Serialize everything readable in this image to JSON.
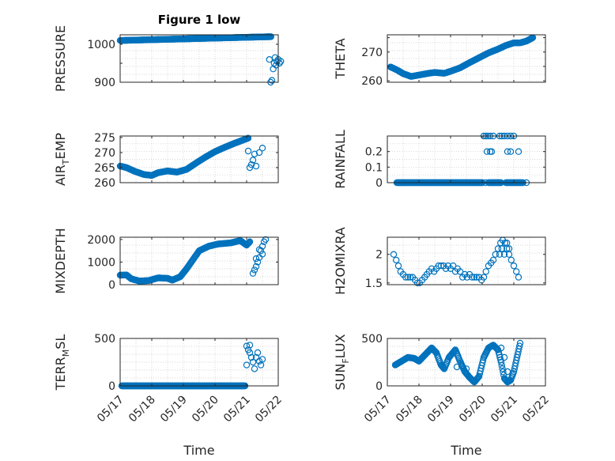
{
  "figure": {
    "title": "Figure 1 low"
  },
  "chart_data": [
    {
      "id": "pressure",
      "type": "scatter",
      "title": "Figure 1 low",
      "ylabel": "PRESSURE",
      "ylabel_sub": "",
      "xlabel": "",
      "show_xticklabels": false,
      "xlim": [
        0,
        5
      ],
      "ylim": [
        900,
        1025
      ],
      "yticks": [
        900,
        950,
        1000
      ],
      "yticklabels": [
        "900",
        "",
        "1000"
      ],
      "dense": [
        {
          "x0": 0.0,
          "x1": 4.78,
          "y0": 1010,
          "y1": 1020,
          "step": 0.015
        }
      ],
      "points": [
        [
          4.72,
          960
        ],
        [
          4.76,
          900
        ],
        [
          4.8,
          905
        ],
        [
          4.84,
          935
        ],
        [
          4.87,
          950
        ],
        [
          4.9,
          965
        ],
        [
          4.93,
          945
        ],
        [
          4.96,
          955
        ],
        [
          5.0,
          960
        ],
        [
          5.04,
          950
        ],
        [
          5.08,
          955
        ]
      ]
    },
    {
      "id": "theta",
      "type": "scatter",
      "ylabel": "THETA",
      "ylabel_sub": "",
      "xlabel": "",
      "show_xticklabels": false,
      "xlim": [
        0,
        5
      ],
      "ylim": [
        259.5,
        276
      ],
      "yticks": [
        260,
        265,
        270,
        275
      ],
      "yticklabels": [
        "260",
        "",
        "270",
        ""
      ],
      "curve": [
        [
          0.1,
          264.8
        ],
        [
          0.3,
          263.8
        ],
        [
          0.5,
          262.5
        ],
        [
          0.75,
          261.5
        ],
        [
          1.0,
          262.0
        ],
        [
          1.3,
          262.6
        ],
        [
          1.5,
          262.9
        ],
        [
          1.8,
          262.6
        ],
        [
          2.0,
          263.3
        ],
        [
          2.3,
          264.5
        ],
        [
          2.6,
          266.3
        ],
        [
          2.9,
          268.0
        ],
        [
          3.2,
          269.7
        ],
        [
          3.5,
          271.0
        ],
        [
          3.75,
          272.3
        ],
        [
          4.0,
          273.2
        ],
        [
          4.2,
          273.2
        ],
        [
          4.4,
          273.8
        ],
        [
          4.6,
          275.0
        ]
      ],
      "step": 0.022,
      "points": []
    },
    {
      "id": "air-temp",
      "type": "scatter",
      "ylabel": "AIR",
      "ylabel_sub": "T",
      "ylabel_after": "EMP",
      "xlabel": "",
      "show_xticklabels": false,
      "xlim": [
        0,
        5
      ],
      "ylim": [
        260,
        275.5
      ],
      "yticks": [
        260,
        265,
        270,
        275
      ],
      "yticklabels": [
        "260",
        "265",
        "270",
        "275"
      ],
      "curve": [
        [
          0.0,
          265.5
        ],
        [
          0.2,
          265.0
        ],
        [
          0.45,
          263.8
        ],
        [
          0.75,
          262.7
        ],
        [
          1.0,
          262.4
        ],
        [
          1.2,
          263.3
        ],
        [
          1.5,
          263.9
        ],
        [
          1.8,
          263.5
        ],
        [
          2.1,
          264.4
        ],
        [
          2.4,
          266.5
        ],
        [
          2.7,
          268.5
        ],
        [
          3.0,
          270.3
        ],
        [
          3.3,
          271.7
        ],
        [
          3.6,
          273.0
        ],
        [
          3.85,
          274.0
        ],
        [
          4.05,
          274.8
        ]
      ],
      "step": 0.02,
      "points": [
        [
          4.05,
          270.5
        ],
        [
          4.1,
          265.0
        ],
        [
          4.15,
          266.0
        ],
        [
          4.2,
          267.5
        ],
        [
          4.25,
          269.5
        ],
        [
          4.3,
          265.5
        ],
        [
          4.4,
          270.0
        ],
        [
          4.5,
          271.5
        ]
      ]
    },
    {
      "id": "rainfall",
      "type": "scatter",
      "ylabel": "RAINFALL",
      "ylabel_sub": "",
      "xlabel": "",
      "show_xticklabels": false,
      "xlim": [
        0,
        5
      ],
      "ylim": [
        0,
        0.3
      ],
      "yticks": [
        0,
        0.1,
        0.2
      ],
      "yticklabels": [
        "0",
        "0.1",
        "0.2"
      ],
      "dense": [
        {
          "x0": 0.3,
          "x1": 3.0,
          "y0": 0,
          "y1": 0,
          "step": 0.018
        },
        {
          "x0": 3.2,
          "x1": 3.6,
          "y0": 0,
          "y1": 0,
          "step": 0.018
        },
        {
          "x0": 3.75,
          "x1": 4.3,
          "y0": 0,
          "y1": 0,
          "step": 0.02
        }
      ],
      "points": [
        [
          3.05,
          0.3
        ],
        [
          3.12,
          0.3
        ],
        [
          3.18,
          0.3
        ],
        [
          3.25,
          0.3
        ],
        [
          3.35,
          0.3
        ],
        [
          3.15,
          0.2
        ],
        [
          3.25,
          0.2
        ],
        [
          3.3,
          0.2
        ],
        [
          3.0,
          0.0
        ],
        [
          3.1,
          0.0
        ],
        [
          3.55,
          0.3
        ],
        [
          3.62,
          0.3
        ],
        [
          3.7,
          0.3
        ],
        [
          3.8,
          0.3
        ],
        [
          3.9,
          0.3
        ],
        [
          4.0,
          0.3
        ],
        [
          3.8,
          0.2
        ],
        [
          3.9,
          0.2
        ],
        [
          4.15,
          0.2
        ],
        [
          4.4,
          0.0
        ]
      ]
    },
    {
      "id": "mixdepth",
      "type": "scatter",
      "ylabel": "MIXDEPTH",
      "ylabel_sub": "",
      "xlabel": "",
      "show_xticklabels": false,
      "xlim": [
        0,
        5
      ],
      "ylim": [
        0,
        2100
      ],
      "yticks": [
        0,
        1000,
        2000
      ],
      "yticklabels": [
        "0",
        "1000",
        "2000"
      ],
      "curve": [
        [
          0.0,
          420
        ],
        [
          0.2,
          430
        ],
        [
          0.35,
          260
        ],
        [
          0.6,
          160
        ],
        [
          0.9,
          180
        ],
        [
          1.2,
          300
        ],
        [
          1.5,
          280
        ],
        [
          1.65,
          200
        ],
        [
          1.9,
          350
        ],
        [
          2.1,
          700
        ],
        [
          2.3,
          1100
        ],
        [
          2.5,
          1500
        ],
        [
          2.8,
          1700
        ],
        [
          3.1,
          1800
        ],
        [
          3.5,
          1850
        ],
        [
          3.8,
          1950
        ],
        [
          4.0,
          1750
        ],
        [
          4.1,
          1900
        ]
      ],
      "step": 0.02,
      "points": [
        [
          4.2,
          500
        ],
        [
          4.25,
          650
        ],
        [
          4.3,
          800
        ],
        [
          4.35,
          1000
        ],
        [
          4.4,
          1200
        ],
        [
          4.45,
          1500
        ],
        [
          4.5,
          1700
        ],
        [
          4.55,
          1900
        ],
        [
          4.6,
          2000
        ],
        [
          4.3,
          1150
        ],
        [
          4.4,
          1550
        ],
        [
          4.5,
          1350
        ]
      ]
    },
    {
      "id": "h2omixra",
      "type": "scatter",
      "ylabel": "H2OMIXRA",
      "ylabel_sub": "",
      "xlabel": "",
      "show_xticklabels": false,
      "xlim": [
        0,
        5
      ],
      "ylim": [
        1.47,
        2.3
      ],
      "yticks": [
        1.5,
        2.0
      ],
      "yticklabels": [
        "1.5",
        "2"
      ],
      "points": [
        [
          0.2,
          2.0
        ],
        [
          0.28,
          1.9
        ],
        [
          0.35,
          1.8
        ],
        [
          0.42,
          1.7
        ],
        [
          0.5,
          1.65
        ],
        [
          0.58,
          1.6
        ],
        [
          0.65,
          1.6
        ],
        [
          0.72,
          1.6
        ],
        [
          0.8,
          1.6
        ],
        [
          0.88,
          1.55
        ],
        [
          0.95,
          1.5
        ],
        [
          1.02,
          1.5
        ],
        [
          1.1,
          1.55
        ],
        [
          1.18,
          1.6
        ],
        [
          1.25,
          1.65
        ],
        [
          1.32,
          1.7
        ],
        [
          1.4,
          1.75
        ],
        [
          1.48,
          1.7
        ],
        [
          1.55,
          1.75
        ],
        [
          1.62,
          1.8
        ],
        [
          1.7,
          1.8
        ],
        [
          1.78,
          1.8
        ],
        [
          1.85,
          1.75
        ],
        [
          1.92,
          1.8
        ],
        [
          2.0,
          1.75
        ],
        [
          2.08,
          1.8
        ],
        [
          2.15,
          1.7
        ],
        [
          2.22,
          1.75
        ],
        [
          2.3,
          1.7
        ],
        [
          2.38,
          1.6
        ],
        [
          2.45,
          1.65
        ],
        [
          2.52,
          1.6
        ],
        [
          2.6,
          1.65
        ],
        [
          2.68,
          1.6
        ],
        [
          2.75,
          1.6
        ],
        [
          2.82,
          1.6
        ],
        [
          2.9,
          1.6
        ],
        [
          2.98,
          1.55
        ],
        [
          3.05,
          1.6
        ],
        [
          3.12,
          1.7
        ],
        [
          3.2,
          1.8
        ],
        [
          3.28,
          1.85
        ],
        [
          3.35,
          1.9
        ],
        [
          3.42,
          2.0
        ],
        [
          3.5,
          2.1
        ],
        [
          3.58,
          2.2
        ],
        [
          3.65,
          2.25
        ],
        [
          3.72,
          2.2
        ],
        [
          3.78,
          2.1
        ],
        [
          3.85,
          2.0
        ],
        [
          3.92,
          1.9
        ],
        [
          4.0,
          1.8
        ],
        [
          4.08,
          1.7
        ],
        [
          4.15,
          1.6
        ],
        [
          3.55,
          2.0
        ],
        [
          3.62,
          2.1
        ],
        [
          3.7,
          2.0
        ],
        [
          3.78,
          2.2
        ],
        [
          3.85,
          2.1
        ]
      ]
    },
    {
      "id": "terr-msl",
      "type": "scatter",
      "ylabel": "TERR",
      "ylabel_sub": "M",
      "ylabel_after": "SL",
      "xlabel": "Time",
      "show_xticklabels": true,
      "xlim": [
        0,
        5
      ],
      "ylim": [
        0,
        500
      ],
      "yticks": [
        0,
        500
      ],
      "yticklabels": [
        "0",
        "500"
      ],
      "xticks": [
        0,
        1,
        2,
        3,
        4,
        5
      ],
      "xticklabels": [
        "05/17",
        "05/18",
        "05/19",
        "05/20",
        "05/21",
        "05/22"
      ],
      "dense": [
        {
          "x0": 0.05,
          "x1": 3.95,
          "y0": 0,
          "y1": 0,
          "step": 0.012
        }
      ],
      "points": [
        [
          4.0,
          420
        ],
        [
          4.05,
          380
        ],
        [
          4.1,
          350
        ],
        [
          4.15,
          300
        ],
        [
          4.2,
          250
        ],
        [
          4.25,
          180
        ],
        [
          4.3,
          300
        ],
        [
          4.35,
          350
        ],
        [
          4.4,
          260
        ],
        [
          4.45,
          220
        ],
        [
          4.5,
          280
        ],
        [
          4.0,
          220
        ],
        [
          4.1,
          430
        ]
      ]
    },
    {
      "id": "sun-flux",
      "type": "scatter",
      "ylabel": "SUN",
      "ylabel_sub": "F",
      "ylabel_after": "LUX",
      "xlabel": "Time",
      "show_xticklabels": true,
      "xlim": [
        0,
        5
      ],
      "ylim": [
        0,
        500
      ],
      "yticks": [
        0,
        500
      ],
      "yticklabels": [
        "0",
        "500"
      ],
      "xticks": [
        0,
        1,
        2,
        3,
        4,
        5
      ],
      "xticklabels": [
        "05/17",
        "05/18",
        "05/19",
        "05/20",
        "05/21",
        "05/22"
      ],
      "curve": [
        [
          0.25,
          220
        ],
        [
          0.45,
          260
        ],
        [
          0.65,
          300
        ],
        [
          0.85,
          290
        ],
        [
          1.0,
          260
        ],
        [
          1.2,
          330
        ],
        [
          1.4,
          400
        ],
        [
          1.55,
          350
        ],
        [
          1.7,
          220
        ],
        [
          1.8,
          180
        ],
        [
          1.95,
          300
        ],
        [
          2.15,
          380
        ],
        [
          2.3,
          260
        ],
        [
          2.45,
          150
        ],
        [
          2.6,
          90
        ],
        [
          2.75,
          40
        ],
        [
          2.9,
          100
        ],
        [
          3.05,
          300
        ],
        [
          3.2,
          400
        ],
        [
          3.35,
          430
        ],
        [
          3.5,
          380
        ],
        [
          3.6,
          250
        ],
        [
          3.7,
          80
        ],
        [
          3.8,
          40
        ],
        [
          3.9,
          60
        ],
        [
          4.0,
          150
        ],
        [
          4.1,
          300
        ],
        [
          4.2,
          450
        ]
      ],
      "step": 0.02,
      "points": [
        [
          2.2,
          200
        ],
        [
          2.35,
          210
        ],
        [
          2.5,
          180
        ],
        [
          3.6,
          400
        ],
        [
          3.7,
          300
        ],
        [
          3.8,
          150
        ]
      ]
    }
  ]
}
